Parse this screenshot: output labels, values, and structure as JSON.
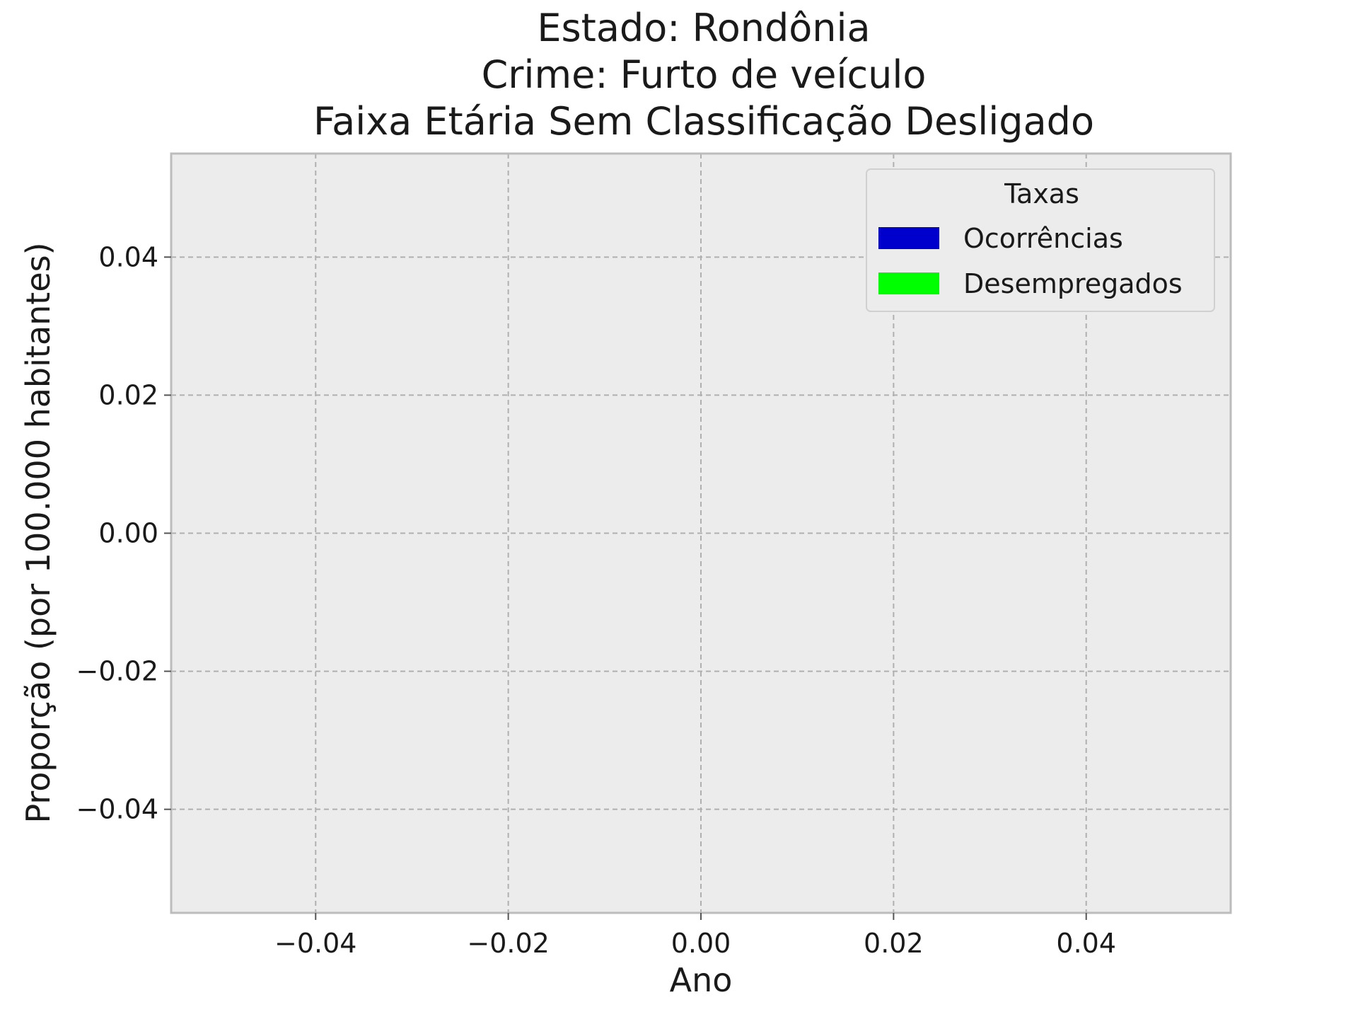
{
  "chart_data": {
    "type": "bar",
    "title": {
      "line1": "Estado: Rondônia",
      "line2": "Crime: Furto de veículo",
      "line3": "Faixa Etária Sem Classificação   Desligado"
    },
    "xlabel": "Ano",
    "ylabel": "Proporção (por 100.000 habitantes)",
    "xlim": [
      -0.055,
      0.055
    ],
    "ylim": [
      -0.055,
      0.055
    ],
    "x_ticks": [
      -0.04,
      -0.02,
      0.0,
      0.02,
      0.04
    ],
    "x_tick_labels": [
      "−0.04",
      "−0.02",
      "0.00",
      "0.02",
      "0.04"
    ],
    "y_ticks": [
      0.04,
      0.02,
      0.0,
      -0.02,
      -0.04
    ],
    "y_tick_labels": [
      "0.04",
      "0.02",
      "0.00",
      "−0.02",
      "−0.04"
    ],
    "grid": true,
    "categories": [],
    "series": [
      {
        "name": "Ocorrências",
        "color": "#0000cc",
        "values": []
      },
      {
        "name": "Desempregados",
        "color": "#00ff00",
        "values": []
      }
    ],
    "legend": {
      "title": "Taxas",
      "position": "top-right",
      "entries": [
        "Ocorrências",
        "Desempregados"
      ]
    },
    "colors": {
      "plot_background": "#ececec",
      "grid": "#b0b0b0",
      "frame": "#bcbcbc"
    }
  }
}
